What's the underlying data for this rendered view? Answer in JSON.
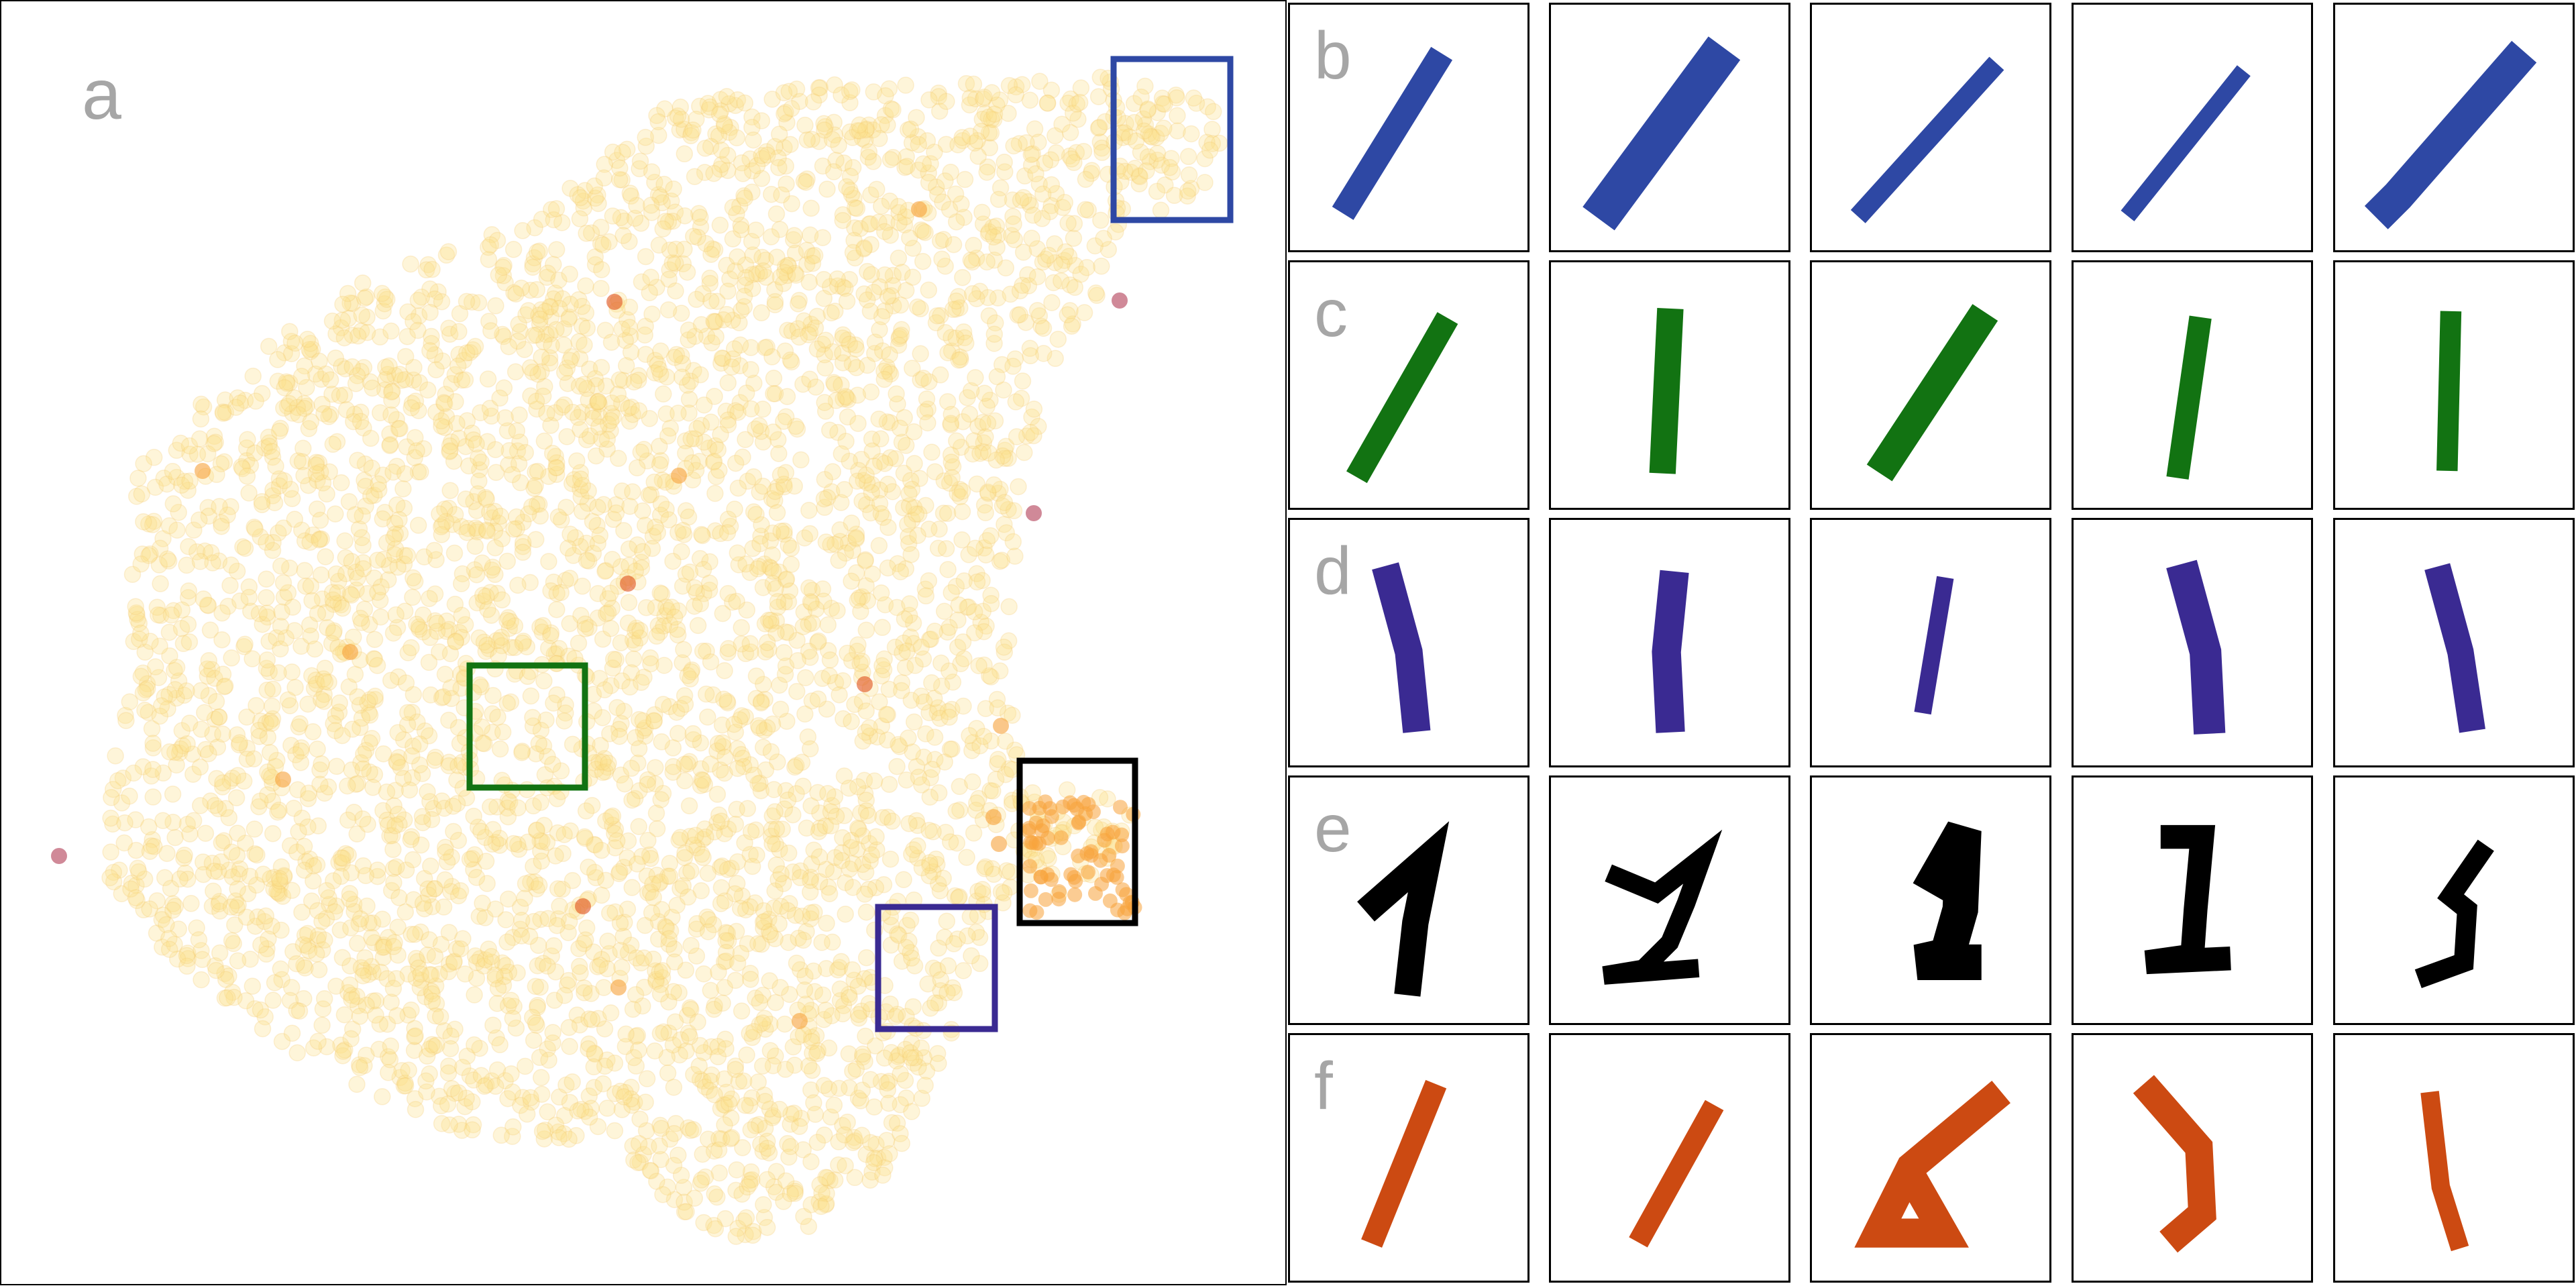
{
  "panel_a": {
    "label": "a"
  },
  "rows": [
    {
      "label": "b",
      "color": "#2e48a4"
    },
    {
      "label": "c",
      "color": "#127312"
    },
    {
      "label": "d",
      "color": "#3a2a92"
    },
    {
      "label": "e",
      "color": "#000000"
    },
    {
      "label": "f",
      "color": "#cc4a12"
    }
  ],
  "chart_data": {
    "type": "scatter",
    "title": "",
    "xlabel": "",
    "ylabel": "",
    "grid": false,
    "legend": "none",
    "colormap": [
      "#fbe08a",
      "#f7a23a",
      "#e0521e",
      "#b03a54"
    ],
    "point_color_base": "#fbe08a",
    "highlight_boxes": [
      {
        "row": "b",
        "color": "#2e48a4"
      },
      {
        "row": "c",
        "color": "#127312"
      },
      {
        "row": "d",
        "color": "#3a2a92"
      },
      {
        "row": "e",
        "color": "#000000"
      }
    ]
  }
}
